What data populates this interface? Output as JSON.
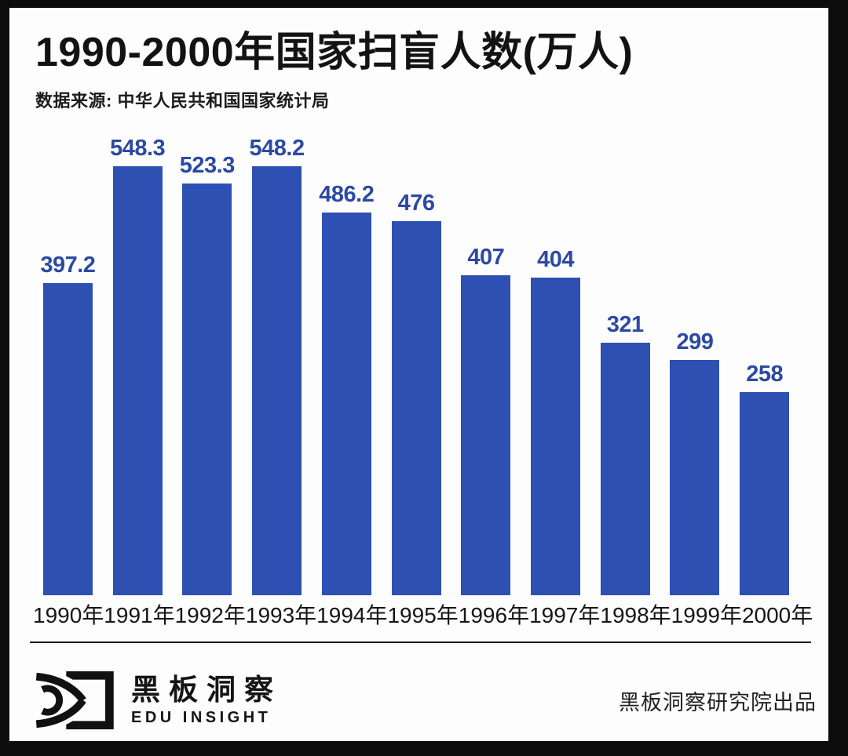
{
  "header": {
    "title": "1990-2000年国家扫盲人数(万人)",
    "source": "数据来源: 中华人民共和国国家统计局"
  },
  "chart_data": {
    "type": "bar",
    "title": "1990-2000年国家扫盲人数(万人)",
    "categories": [
      "1990年",
      "1991年",
      "1992年",
      "1993年",
      "1994年",
      "1995年",
      "1996年",
      "1997年",
      "1998年",
      "1999年",
      "2000年"
    ],
    "values": [
      397.2,
      548.3,
      523.3,
      548.2,
      486.2,
      476,
      407,
      404,
      321,
      299,
      258
    ],
    "xlabel": "",
    "ylabel": "",
    "ylim": [
      0,
      560
    ],
    "grid": false,
    "legend": false,
    "data_labels": true,
    "bar_color": "#2d50b2",
    "value_label_color": "#2c4aa3"
  },
  "footer": {
    "brand_cn": "黑板洞察",
    "brand_en": "EDU INSIGHT",
    "logo_icon": "eye-blackboard-logo",
    "credit": "黑板洞察研究院出品"
  },
  "colors": {
    "background": "#fdfdfd",
    "frame": "#0c0c0c",
    "text": "#131313",
    "bar": "#2d50b2",
    "value_label": "#2c4aa3"
  }
}
